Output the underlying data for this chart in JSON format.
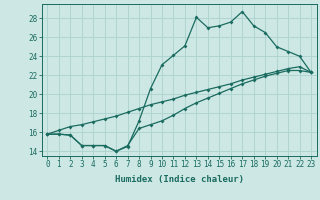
{
  "xlabel": "Humidex (Indice chaleur)",
  "bg_color": "#cde8e4",
  "grid_color": "#b0d4d0",
  "line_color": "#1a6b60",
  "x_values": [
    0,
    1,
    2,
    3,
    4,
    5,
    6,
    7,
    8,
    9,
    10,
    11,
    12,
    13,
    14,
    15,
    16,
    17,
    18,
    19,
    20,
    21,
    22,
    23
  ],
  "line1": [
    15.8,
    15.8,
    15.7,
    14.6,
    14.6,
    14.6,
    14.0,
    14.5,
    17.2,
    20.6,
    23.1,
    24.1,
    25.1,
    28.1,
    27.0,
    27.2,
    27.6,
    28.7,
    27.2,
    26.5,
    25.0,
    24.5,
    24.0,
    22.3
  ],
  "line2": [
    15.8,
    16.2,
    16.6,
    16.8,
    17.1,
    17.4,
    17.7,
    18.1,
    18.5,
    18.9,
    19.2,
    19.5,
    19.9,
    20.2,
    20.5,
    20.8,
    21.1,
    21.5,
    21.8,
    22.1,
    22.4,
    22.7,
    22.9,
    22.3
  ],
  "line3": [
    15.8,
    15.8,
    15.7,
    14.6,
    14.6,
    14.6,
    14.0,
    14.6,
    16.4,
    16.8,
    17.2,
    17.8,
    18.5,
    19.1,
    19.6,
    20.1,
    20.6,
    21.1,
    21.5,
    21.9,
    22.2,
    22.5,
    22.5,
    22.3
  ],
  "ylim": [
    13.5,
    29.5
  ],
  "xlim": [
    -0.5,
    23.5
  ],
  "yticks": [
    14,
    16,
    18,
    20,
    22,
    24,
    26,
    28
  ],
  "xticks": [
    0,
    1,
    2,
    3,
    4,
    5,
    6,
    7,
    8,
    9,
    10,
    11,
    12,
    13,
    14,
    15,
    16,
    17,
    18,
    19,
    20,
    21,
    22,
    23
  ]
}
